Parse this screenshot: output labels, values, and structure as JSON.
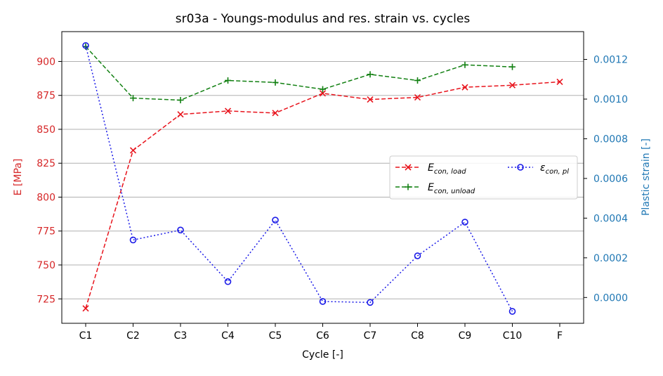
{
  "chart_data": {
    "type": "line",
    "title": "sr03a - Youngs-modulus and res. strain vs. cycles",
    "xlabel": "Cycle [-]",
    "ylabel_left": "E [MPa]",
    "ylabel_right": "Plastic strain [-]",
    "categories": [
      "C1",
      "C2",
      "C3",
      "C4",
      "C5",
      "C6",
      "C7",
      "C8",
      "C9",
      "C10",
      "F"
    ],
    "ylim_left": [
      707,
      922
    ],
    "yticks_left": [
      725,
      750,
      775,
      800,
      825,
      850,
      875,
      900
    ],
    "ylim_right": [
      -0.00013,
      0.00134
    ],
    "yticks_right": [
      "0.0000",
      "0.0002",
      "0.0004",
      "0.0006",
      "0.0008",
      "0.0010",
      "0.0012"
    ],
    "yticks_right_values": [
      0,
      0.0002,
      0.0004,
      0.0006,
      0.0008,
      0.001,
      0.0012
    ],
    "grid": "horizontal (left axis)",
    "legend_position": "center-right",
    "series": [
      {
        "name": "E_con,load",
        "name_main": "E",
        "name_sub": "con, load",
        "axis": "left",
        "color": "#e8131c",
        "marker": "x",
        "dash": "dashed",
        "values": [
          718,
          834.5,
          861,
          863.5,
          862,
          876.5,
          872,
          873.5,
          881,
          882.5,
          885
        ]
      },
      {
        "name": "E_con,unload",
        "name_main": "E",
        "name_sub": "con, unload",
        "axis": "left",
        "color": "#128012",
        "marker": "plus",
        "dash": "dashed",
        "values": [
          911,
          873,
          871.5,
          886,
          884.5,
          879.5,
          890.5,
          886,
          897.5,
          896,
          null
        ]
      },
      {
        "name": "ε_con,pl",
        "name_main": "ε",
        "name_sub": "con, pl",
        "axis": "right",
        "color": "#1a1ae8",
        "marker": "circle",
        "dash": "dotted",
        "values": [
          0.00127,
          0.00029,
          0.00034,
          8e-05,
          0.00039,
          -2e-05,
          -2.5e-05,
          0.00021,
          0.00038,
          -7e-05,
          null
        ]
      }
    ]
  },
  "colors": {
    "left_axis": "#d62728",
    "right_axis": "#1f77b4",
    "grid": "#b0b0b0"
  }
}
